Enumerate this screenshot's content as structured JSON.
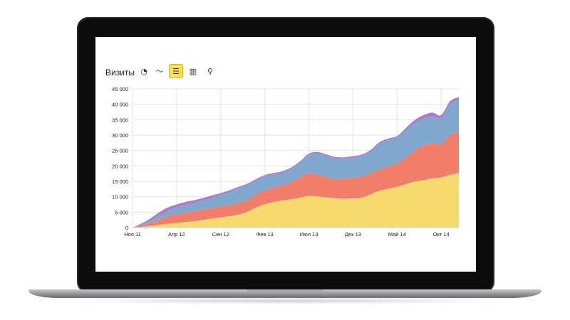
{
  "chart_header": {
    "title": "Визиты",
    "buttons": [
      {
        "icon": "pie-chart-icon",
        "glyph": "◔",
        "active": false
      },
      {
        "icon": "line-chart-icon",
        "glyph": "〜",
        "active": false
      },
      {
        "icon": "stacked-area-icon",
        "glyph": "☰",
        "active": true
      },
      {
        "icon": "bar-chart-icon",
        "glyph": "▥",
        "active": false
      },
      {
        "icon": "map-pin-icon",
        "glyph": "⚲",
        "active": false
      }
    ]
  },
  "chart_data": {
    "type": "area",
    "stacked": true,
    "title": "",
    "xlabel": "",
    "ylabel": "",
    "ylim": [
      0,
      45000
    ],
    "grid": true,
    "legend": "none",
    "y_ticks": [
      0,
      5000,
      10000,
      15000,
      20000,
      25000,
      30000,
      35000,
      40000,
      45000
    ],
    "y_tick_labels": [
      "0",
      "5 000",
      "10 000",
      "15 000",
      "20 000",
      "25 000",
      "30 000",
      "35 000",
      "40 000",
      "45 000"
    ],
    "x_tick_labels": [
      "Ноя 11",
      "Апр 12",
      "Сен 12",
      "Фев 13",
      "Июл 13",
      "Дек 13",
      "Май 14",
      "Окт 14"
    ],
    "x_tick_index": [
      0,
      5,
      10,
      15,
      20,
      25,
      30,
      35
    ],
    "x": [
      "Ноя 11",
      "Дек 11",
      "Янв 12",
      "Фев 12",
      "Мар 12",
      "Апр 12",
      "Май 12",
      "Июн 12",
      "Июл 12",
      "Авг 12",
      "Сен 12",
      "Окт 12",
      "Ноя 12",
      "Дек 12",
      "Янв 13",
      "Фев 13",
      "Мар 13",
      "Апр 13",
      "Май 13",
      "Июн 13",
      "Июл 13",
      "Авг 13",
      "Сен 13",
      "Окт 13",
      "Ноя 13",
      "Дек 13",
      "Янв 14",
      "Фев 14",
      "Мар 14",
      "Апр 14",
      "Май 14",
      "Июн 14",
      "Июл 14",
      "Авг 14",
      "Сен 14",
      "Окт 14",
      "Ноя 14",
      "Дек 14"
    ],
    "series": [
      {
        "color": "#f7da6e",
        "values": [
          0,
          200,
          500,
          900,
          1200,
          1500,
          1800,
          2100,
          2500,
          2900,
          3300,
          3700,
          4200,
          5100,
          6500,
          7600,
          8300,
          8800,
          9200,
          9700,
          10300,
          10100,
          9800,
          9500,
          9400,
          9500,
          9700,
          10800,
          11900,
          12600,
          13200,
          14100,
          14900,
          15400,
          16000,
          16300,
          17100,
          17700
        ]
      },
      {
        "color": "#f17e6a",
        "values": [
          0,
          500,
          1000,
          1700,
          2400,
          2900,
          3100,
          3200,
          3400,
          3500,
          3600,
          3700,
          3800,
          3900,
          4200,
          4500,
          4700,
          4900,
          5600,
          6600,
          7400,
          7100,
          6600,
          6300,
          6400,
          6800,
          6900,
          6900,
          7000,
          7300,
          7700,
          8700,
          10100,
          11300,
          11400,
          10900,
          13000,
          13400
        ]
      },
      {
        "color": "#7fa8cf",
        "values": [
          0,
          300,
          800,
          1400,
          1900,
          2200,
          2500,
          2700,
          2900,
          3300,
          3700,
          4200,
          4800,
          4800,
          4600,
          4500,
          4300,
          4200,
          4300,
          4800,
          5900,
          6900,
          6900,
          6700,
          6600,
          6500,
          6700,
          7100,
          8400,
          8600,
          8400,
          8900,
          9000,
          8700,
          8800,
          8300,
          10000,
          10300
        ]
      },
      {
        "color": "#b079c6",
        "values": [
          0,
          300,
          600,
          900,
          1000,
          900,
          900,
          900,
          800,
          700,
          600,
          500,
          400,
          400,
          400,
          400,
          400,
          400,
          400,
          400,
          400,
          400,
          400,
          400,
          400,
          400,
          400,
          400,
          400,
          400,
          400,
          600,
          900,
          1100,
          1100,
          1000,
          900,
          900
        ]
      }
    ]
  }
}
